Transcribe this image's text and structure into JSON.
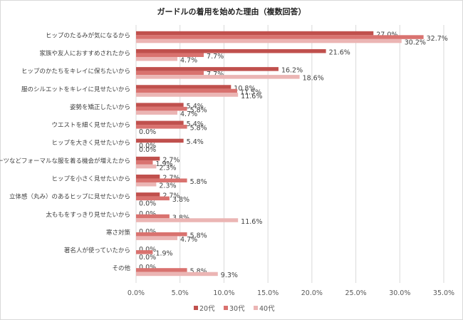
{
  "chart_data": {
    "type": "bar",
    "orientation": "horizontal",
    "title": "ガードルの着用を始めた理由（複数回答）",
    "categories": [
      "ヒップのたるみが気になるから",
      "家族や友人におすすめされたから",
      "ヒップのかたちをキレイに保ちたいから",
      "服のシルエットをキレイに見せたいから",
      "姿勢を矯正したいから",
      "ウエストを細く見せたいから",
      "ヒップを大きく見せたいから",
      "スーツなどフォーマルな服を着る機会が増えたから",
      "ヒップを小さく見せたいから",
      "立体感（丸み）のあるヒップに見せたいから",
      "太ももをすっきり見せたいから",
      "寒さ対策",
      "著名人が使っていたから",
      "その他"
    ],
    "series": [
      {
        "name": "20代",
        "color": "#c0504d",
        "values": [
          27.0,
          21.6,
          16.2,
          10.8,
          5.4,
          5.4,
          5.4,
          2.7,
          2.7,
          2.7,
          0.0,
          0.0,
          0.0,
          0.0
        ]
      },
      {
        "name": "30代",
        "color": "#d9726f",
        "values": [
          32.7,
          7.7,
          7.7,
          11.5,
          5.8,
          5.8,
          0.0,
          1.9,
          5.8,
          3.8,
          3.8,
          5.8,
          1.9,
          5.8
        ]
      },
      {
        "name": "40代",
        "color": "#ebb5b4",
        "values": [
          30.2,
          4.7,
          18.6,
          11.6,
          4.7,
          0.0,
          0.0,
          2.3,
          2.3,
          0.0,
          11.6,
          4.7,
          0.0,
          9.3
        ]
      }
    ],
    "xlim": [
      0,
      35
    ],
    "xticks": [
      "0.0%",
      "5.0%",
      "10.0%",
      "15.0%",
      "20.0%",
      "25.0%",
      "30.0%",
      "35.0%"
    ],
    "grid": true,
    "legend": "bottom"
  }
}
